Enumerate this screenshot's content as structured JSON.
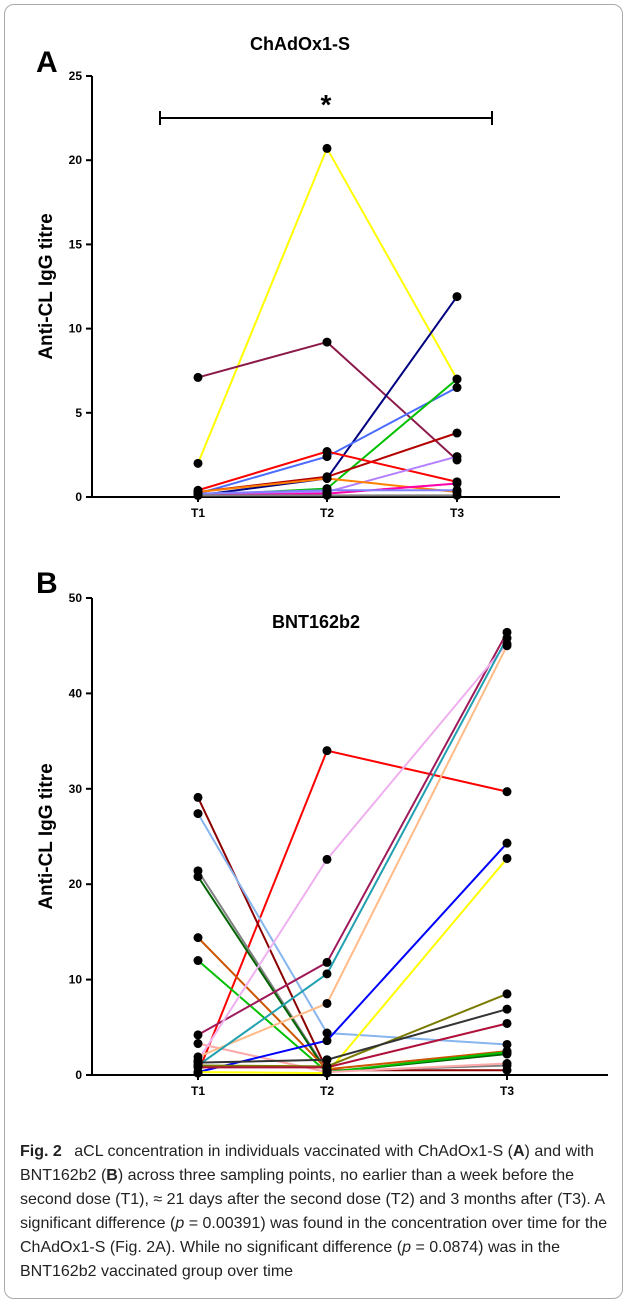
{
  "chart_data": [
    {
      "type": "line",
      "panel_label": "A",
      "title": "ChAdOx1-S",
      "xlabel": "",
      "ylabel": "Anti-CL IgG titre",
      "categories": [
        "T1",
        "T2",
        "T3"
      ],
      "ylim": [
        0,
        25
      ],
      "yticks": [
        0,
        5,
        10,
        15,
        20,
        25
      ],
      "significance": {
        "from": "T1",
        "to": "T3",
        "marker": "*"
      },
      "series": [
        {
          "color": "#ffff00",
          "values": [
            2.0,
            20.7,
            7.0
          ]
        },
        {
          "color": "#8b1a4a",
          "values": [
            7.1,
            9.2,
            2.2
          ]
        },
        {
          "color": "#000080",
          "values": [
            0.1,
            1.1,
            11.9
          ]
        },
        {
          "color": "#4b6cff",
          "values": [
            0.2,
            2.4,
            6.5
          ]
        },
        {
          "color": "#00c000",
          "values": [
            0.1,
            0.5,
            7.0
          ]
        },
        {
          "color": "#b30000",
          "values": [
            0.3,
            1.2,
            3.8
          ]
        },
        {
          "color": "#ff0000",
          "values": [
            0.4,
            2.7,
            0.9
          ]
        },
        {
          "color": "#b380ff",
          "values": [
            0.2,
            0.3,
            2.4
          ]
        },
        {
          "color": "#ff7f00",
          "values": [
            0.3,
            1.1,
            0.3
          ]
        },
        {
          "color": "#ff00aa",
          "values": [
            0.1,
            0.2,
            0.8
          ]
        },
        {
          "color": "#7f7fff",
          "values": [
            0.2,
            0.4,
            0.4
          ]
        },
        {
          "color": "#808080",
          "values": [
            0.1,
            0.1,
            0.1
          ]
        }
      ]
    },
    {
      "type": "line",
      "panel_label": "B",
      "title": "BNT162b2",
      "xlabel": "",
      "ylabel": "Anti-CL IgG titre",
      "categories": [
        "T1",
        "T2",
        "T3"
      ],
      "ylim": [
        0,
        50
      ],
      "yticks": [
        0,
        10,
        20,
        30,
        40,
        50
      ],
      "series": [
        {
          "color": "#ff0000",
          "values": [
            0.2,
            34.0,
            29.7
          ]
        },
        {
          "color": "#8b0000",
          "values": [
            29.1,
            0.5,
            0.5
          ]
        },
        {
          "color": "#87b5ee",
          "values": [
            27.4,
            4.4,
            3.2
          ]
        },
        {
          "color": "#808080",
          "values": [
            21.4,
            0.4,
            1.0
          ]
        },
        {
          "color": "#006400",
          "values": [
            20.8,
            0.3,
            2.2
          ]
        },
        {
          "color": "#cc5500",
          "values": [
            14.4,
            0.6,
            2.5
          ]
        },
        {
          "color": "#00c000",
          "values": [
            12.0,
            0.3,
            2.4
          ]
        },
        {
          "color": "#9e1a5a",
          "values": [
            4.2,
            11.8,
            46.4
          ]
        },
        {
          "color": "#ffaaaa",
          "values": [
            3.3,
            0.3,
            1.2
          ]
        },
        {
          "color": "#efb0ef",
          "values": [
            1.5,
            22.6,
            45.2
          ]
        },
        {
          "color": "#ffbb88",
          "values": [
            1.9,
            7.5,
            45.0
          ]
        },
        {
          "color": "#20a0b0",
          "values": [
            1.0,
            10.6,
            45.8
          ]
        },
        {
          "color": "#0000ff",
          "values": [
            0.3,
            3.6,
            24.3
          ]
        },
        {
          "color": "#ffff00",
          "values": [
            0.3,
            0.2,
            22.7
          ]
        },
        {
          "color": "#7a7a00",
          "values": [
            1.0,
            0.9,
            8.5
          ]
        },
        {
          "color": "#333333",
          "values": [
            1.3,
            1.6,
            6.9
          ]
        },
        {
          "color": "#b0103a",
          "values": [
            0.8,
            0.8,
            5.4
          ]
        }
      ]
    }
  ],
  "caption": {
    "fig_label": "Fig. 2",
    "t1": "aCL concentration in individuals vaccinated with ChAdOx1-S (",
    "b1": "A",
    "t2": ") and with BNT162b2 (",
    "b2": "B",
    "t3": ") across three sampling points, no earlier than a week before the second dose (T1), ≈ 21 days after the second dose (T2) and 3 months after (T3). A significant difference (",
    "i1": "p",
    "t4": " = 0.00391) was found in the concentration over time for the ChAdOx1-S (Fig. 2A). While no significant difference (",
    "i2": "p",
    "t5": " = 0.0874) was in the BNT162b2 vaccinated group over time"
  }
}
